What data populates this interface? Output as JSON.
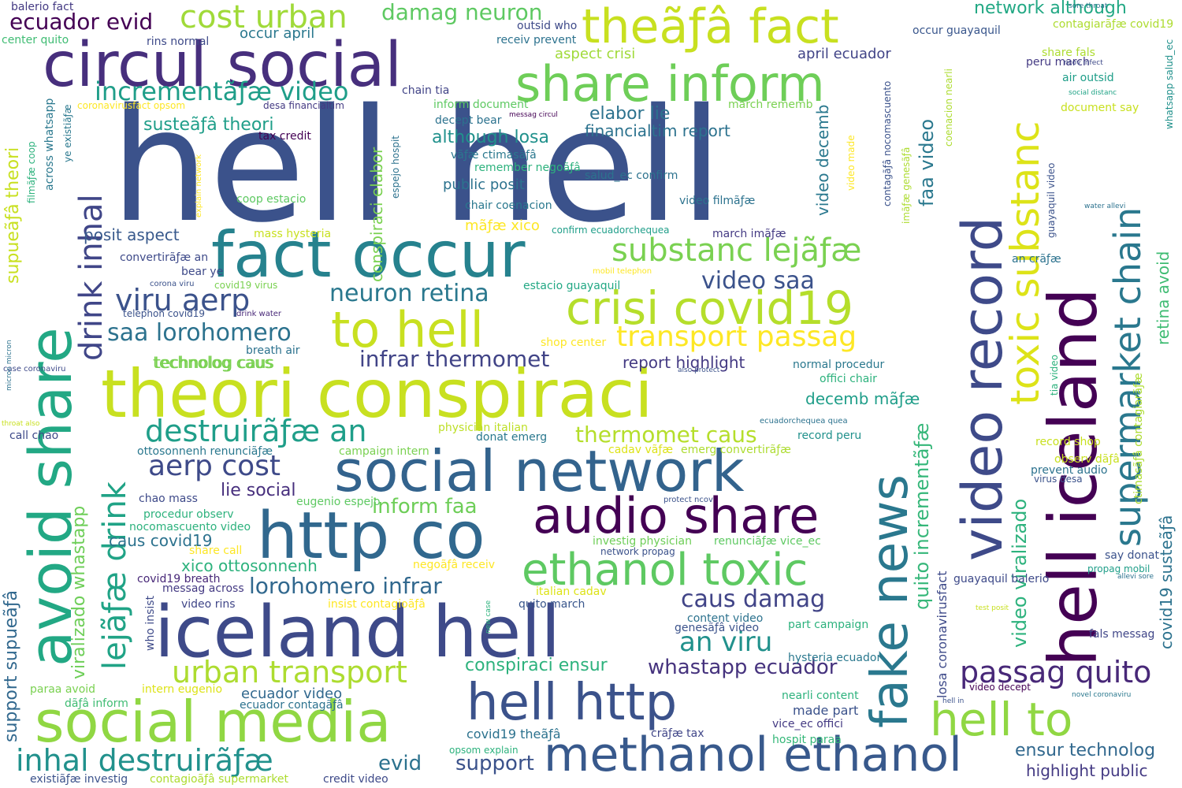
{
  "words": [
    {
      "text": "hell hell",
      "color": "#3b528b"
    },
    {
      "text": "theori conspiraci",
      "color": "#c8e020"
    },
    {
      "text": "iceland hell",
      "color": "#3e4a89"
    },
    {
      "text": "circul social",
      "color": "#472f7d"
    },
    {
      "text": "social network",
      "color": "#33638d"
    },
    {
      "text": "fact occur",
      "color": "#26828e"
    },
    {
      "text": "http co",
      "color": "#31688e"
    },
    {
      "text": "social media",
      "color": "#90d743"
    },
    {
      "text": "methanol ethanol",
      "color": "#38598c"
    },
    {
      "text": "audio share",
      "color": "#440154"
    },
    {
      "text": "theãƒâ fact",
      "color": "#c8e020"
    },
    {
      "text": "share inform",
      "color": "#6ece58"
    },
    {
      "text": "ethanol toxic",
      "color": "#5ec962"
    },
    {
      "text": "crisi covid19",
      "color": "#b5de2b"
    },
    {
      "text": "to hell",
      "color": "#c8e020"
    },
    {
      "text": "hell http",
      "color": "#3b528b"
    },
    {
      "text": "hell to",
      "color": "#90d743"
    },
    {
      "text": "avoid share",
      "color": "#22a884"
    },
    {
      "text": "video record",
      "color": "#3e4a89"
    },
    {
      "text": "hell iceland",
      "color": "#440154"
    },
    {
      "text": "fake news",
      "color": "#2a788e"
    },
    {
      "text": "toxic substanc",
      "color": "#dde318"
    },
    {
      "text": "supermarket chain",
      "color": "#2a788e"
    },
    {
      "text": "substanc lejãƒæ",
      "color": "#7ad151"
    },
    {
      "text": "cost urban",
      "color": "#a0da39"
    },
    {
      "text": "damag neuron",
      "color": "#5ec962"
    },
    {
      "text": "incrementãƒæ video",
      "color": "#1f9e89"
    },
    {
      "text": "viru aerp",
      "color": "#3b528b"
    },
    {
      "text": "urban transport",
      "color": "#addc30"
    },
    {
      "text": "inhal destruirãƒæ",
      "color": "#21918c"
    },
    {
      "text": "destruirãƒæ an",
      "color": "#1f9e89"
    },
    {
      "text": "aerp cost",
      "color": "#3e4a89"
    },
    {
      "text": "passag quito",
      "color": "#482878"
    },
    {
      "text": "transport passag",
      "color": "#fde725"
    },
    {
      "text": "neuron retina",
      "color": "#2a788e"
    },
    {
      "text": "an viru",
      "color": "#21918c"
    },
    {
      "text": "caus damag",
      "color": "#414487"
    },
    {
      "text": "lejãƒæ drink",
      "color": "#20a386"
    },
    {
      "text": "drink inhal",
      "color": "#404688"
    },
    {
      "text": "ecuador evid",
      "color": "#440154"
    },
    {
      "text": "video saa",
      "color": "#3b528b"
    },
    {
      "text": "saa lorohomero",
      "color": "#2c728e"
    },
    {
      "text": "lorohomero infrar",
      "color": "#31688e"
    },
    {
      "text": "infrar thermomet",
      "color": "#414487"
    },
    {
      "text": "thermomet caus",
      "color": "#b5de2b"
    },
    {
      "text": "inform faa",
      "color": "#6ece58"
    },
    {
      "text": "whastapp ecuador",
      "color": "#46337e"
    },
    {
      "text": "conspiraci ensur",
      "color": "#2db27d"
    },
    {
      "text": "support",
      "color": "#3b528b"
    },
    {
      "text": "evid",
      "color": "#2c728e"
    },
    {
      "text": "ensur technolog",
      "color": "#31688e"
    },
    {
      "text": "highlight public",
      "color": "#443a83"
    },
    {
      "text": "elabor lie",
      "color": "#2c728e"
    },
    {
      "text": "although losa",
      "color": "#21918c"
    },
    {
      "text": "susteãƒâ theori",
      "color": "#1f9e89"
    },
    {
      "text": "financialtim report",
      "color": "#2c728e"
    },
    {
      "text": "aspect crisi",
      "color": "#a0da39"
    },
    {
      "text": "april ecuador",
      "color": "#414487"
    },
    {
      "text": "public posit",
      "color": "#2c728e"
    },
    {
      "text": "technolog caus",
      "color": "#7ad151"
    },
    {
      "text": "report highlight",
      "color": "#443a83"
    },
    {
      "text": "lie social",
      "color": "#472f7d"
    },
    {
      "text": "caus covid19",
      "color": "#2c728e"
    },
    {
      "text": "xico ottosonnenh",
      "color": "#2db27d"
    },
    {
      "text": "posit aspect",
      "color": "#38598c"
    },
    {
      "text": "network although",
      "color": "#22a884"
    },
    {
      "text": "occur april",
      "color": "#2a788e"
    },
    {
      "text": "occur guayaquil",
      "color": "#39568c"
    },
    {
      "text": "peru march",
      "color": "#443a83"
    },
    {
      "text": "share fals",
      "color": "#addc30"
    },
    {
      "text": "faa video",
      "color": "#2a788e"
    },
    {
      "text": "video decemb",
      "color": "#2a788e"
    },
    {
      "text": "decemb mãƒæ",
      "color": "#1f9e89"
    },
    {
      "text": "conspiraci elabor",
      "color": "#7ad151"
    },
    {
      "text": "quito incrementãƒæ",
      "color": "#35b779"
    },
    {
      "text": "virus desa",
      "color": "#3b528b"
    },
    {
      "text": "ecuador video",
      "color": "#31688e"
    },
    {
      "text": "mãƒæ xico",
      "color": "#fde725"
    },
    {
      "text": "retina avoid",
      "color": "#3fbc73"
    },
    {
      "text": "supueãƒâ theori",
      "color": "#c8e020"
    },
    {
      "text": "support supueãƒâ",
      "color": "#31688e"
    },
    {
      "text": "viralizado whastapp",
      "color": "#6ece58"
    },
    {
      "text": "video viralizado",
      "color": "#2db27d"
    },
    {
      "text": "losa coronavirusfact",
      "color": "#3e4a89"
    },
    {
      "text": "covid19 susteãƒâ",
      "color": "#2c728e"
    },
    {
      "text": "record shop",
      "color": "#c8e020"
    },
    {
      "text": "prevent audio",
      "color": "#2c728e"
    },
    {
      "text": "fals messag",
      "color": "#404688"
    },
    {
      "text": "say donat",
      "color": "#3b528b"
    },
    {
      "text": "guayaquil balerio",
      "color": "#3e4a89"
    },
    {
      "text": "normal procedur",
      "color": "#2a788e"
    },
    {
      "text": "offici chair",
      "color": "#2db27d"
    },
    {
      "text": "record peru",
      "color": "#21918c"
    },
    {
      "text": "hysteria ecuador",
      "color": "#2a788e"
    },
    {
      "text": "nearli content",
      "color": "#2db27d"
    },
    {
      "text": "made part",
      "color": "#3b528b"
    },
    {
      "text": "vice_ec offici",
      "color": "#443a83"
    },
    {
      "text": "hospit paraa",
      "color": "#35b779"
    },
    {
      "text": "content video",
      "color": "#2c728e"
    },
    {
      "text": "genesãƒâ video",
      "color": "#3b528b"
    },
    {
      "text": "part campaign",
      "color": "#2db27d"
    },
    {
      "text": "crãƒæ tax",
      "color": "#404688"
    },
    {
      "text": "covid19 theãƒâ",
      "color": "#2c728e"
    },
    {
      "text": "italian cadav",
      "color": "#dde318"
    },
    {
      "text": "quito march",
      "color": "#39568c"
    },
    {
      "text": "investig physician",
      "color": "#6ece58"
    },
    {
      "text": "renunciãƒæ vice_ec",
      "color": "#5ec962"
    },
    {
      "text": "network propag",
      "color": "#3b528b"
    },
    {
      "text": "negoãƒâ receiv",
      "color": "#fde725"
    },
    {
      "text": "physician italian",
      "color": "#bddf26"
    },
    {
      "text": "donat emerg",
      "color": "#2a788e"
    },
    {
      "text": "cadav vãƒæ",
      "color": "#dde318"
    },
    {
      "text": "emerg convertirãƒæ",
      "color": "#addc30"
    },
    {
      "text": "campaign intern",
      "color": "#7ad151"
    },
    {
      "text": "eugenio espejo",
      "color": "#5ec962"
    },
    {
      "text": "protect ncov",
      "color": "#3b528b"
    },
    {
      "text": "ottosonnenh renunciãƒæ",
      "color": "#2a788e"
    },
    {
      "text": "chao mass",
      "color": "#3e4a89"
    },
    {
      "text": "procedur observ",
      "color": "#2db27d"
    },
    {
      "text": "nocomascuento video",
      "color": "#2db27d"
    },
    {
      "text": "share call",
      "color": "#fde725"
    },
    {
      "text": "covid19 breath",
      "color": "#482878"
    },
    {
      "text": "messag across",
      "color": "#443a83"
    },
    {
      "text": "video rins",
      "color": "#404688"
    },
    {
      "text": "insist contagioãƒâ",
      "color": "#fde725"
    },
    {
      "text": "paraa avoid",
      "color": "#7ad151"
    },
    {
      "text": "intern eugenio",
      "color": "#dde318"
    },
    {
      "text": "dãƒâ inform",
      "color": "#3fbc73"
    },
    {
      "text": "ecuador contagãƒâ",
      "color": "#2c728e"
    },
    {
      "text": "existiãƒæ investig",
      "color": "#3b528b"
    },
    {
      "text": "contagioãƒâ supermarket",
      "color": "#addc30"
    },
    {
      "text": "credit video",
      "color": "#3e4a89"
    },
    {
      "text": "opsom explain",
      "color": "#2db27d"
    },
    {
      "text": "who insist",
      "color": "#3e4a89"
    },
    {
      "text": "call chao",
      "color": "#3e4a89"
    },
    {
      "text": "case coronaviru",
      "color": "#3e4a89"
    },
    {
      "text": "technolog caus",
      "color": "#7ad151"
    },
    {
      "text": "breath air",
      "color": "#2c728e"
    },
    {
      "text": "telephon covid19",
      "color": "#3b528b"
    },
    {
      "text": "drink water",
      "color": "#482878"
    },
    {
      "text": "corona viru",
      "color": "#3b528b"
    },
    {
      "text": "covid19 virus",
      "color": "#7ad151"
    },
    {
      "text": "bear ye",
      "color": "#3e4a89"
    },
    {
      "text": "convertirãƒæ an",
      "color": "#3e4a89"
    },
    {
      "text": "mass hysteria",
      "color": "#c8e020"
    },
    {
      "text": "coop estacio",
      "color": "#5ec962"
    },
    {
      "text": "estacio guayaquil",
      "color": "#22a884"
    },
    {
      "text": "mobil telephon",
      "color": "#fde725"
    },
    {
      "text": "shop center",
      "color": "#fde725"
    },
    {
      "text": "also protect",
      "color": "#3b528b"
    },
    {
      "text": "confirm ecuadorchequea",
      "color": "#1f9e89"
    },
    {
      "text": "march imãƒæ",
      "color": "#443a83"
    },
    {
      "text": "video filmãƒæ",
      "color": "#2c728e"
    },
    {
      "text": "chair coenacion",
      "color": "#2a788e"
    },
    {
      "text": "remember negoãƒâ",
      "color": "#2db27d"
    },
    {
      "text": "vãƒæ ctimasãƒâ",
      "color": "#2a788e"
    },
    {
      "text": "decept bear",
      "color": "#2c728e"
    },
    {
      "text": "messag circul",
      "color": "#440154"
    },
    {
      "text": "inform document",
      "color": "#5ec962"
    },
    {
      "text": "chain tia",
      "color": "#414487"
    },
    {
      "text": "march rememb",
      "color": "#7ad151"
    },
    {
      "text": "desa financialtim",
      "color": "#443a83"
    },
    {
      "text": "tax credit",
      "color": "#440154"
    },
    {
      "text": "coronavirusfact opsom",
      "color": "#fde725"
    },
    {
      "text": "rins normal",
      "color": "#3e4a89"
    },
    {
      "text": "balerio fact",
      "color": "#443a83"
    },
    {
      "text": "center quito",
      "color": "#3fbc73"
    },
    {
      "text": "outsid who",
      "color": "#3e4a89"
    },
    {
      "text": "receiv prevent",
      "color": "#2c728e"
    },
    {
      "text": "salud_ec confirm",
      "color": "#2c728e"
    },
    {
      "text": "sore throat",
      "color": "#2c728e"
    },
    {
      "text": "contagiarãƒæ covid19",
      "color": "#addc30"
    },
    {
      "text": "ncov infect",
      "color": "#3e4a89"
    },
    {
      "text": "air outsid",
      "color": "#1f9e89"
    },
    {
      "text": "social distanc",
      "color": "#20a386"
    },
    {
      "text": "document say",
      "color": "#c8e020"
    },
    {
      "text": "whatsapp salud_ec",
      "color": "#21918c"
    },
    {
      "text": "water allevi",
      "color": "#2c728e"
    },
    {
      "text": "an crãƒæ",
      "color": "#2c728e"
    },
    {
      "text": "tia video",
      "color": "#2db27d"
    },
    {
      "text": "ctimasãƒâ contagiarãƒæ",
      "color": "#addc30"
    },
    {
      "text": "observ dãƒâ",
      "color": "#c8e020"
    },
    {
      "text": "propag mobil",
      "color": "#1f9e89"
    },
    {
      "text": "allevi sore",
      "color": "#2c728e"
    },
    {
      "text": "test posit",
      "color": "#c8e020"
    },
    {
      "text": "novel coronaviru",
      "color": "#2a788e"
    },
    {
      "text": "video decept",
      "color": "#440154"
    },
    {
      "text": "hell in",
      "color": "#3b528b"
    },
    {
      "text": "guayaquil video",
      "color": "#3b528b"
    },
    {
      "text": "coenacion nearli",
      "color": "#addc30"
    },
    {
      "text": "imãƒæ genesãƒâ",
      "color": "#addc30"
    },
    {
      "text": "contagãƒâ nocomascuento",
      "color": "#3b528b"
    },
    {
      "text": "video made",
      "color": "#fde725"
    },
    {
      "text": "espejo hospit",
      "color": "#2c728e"
    },
    {
      "text": "explain network",
      "color": "#fde725"
    },
    {
      "text": "filmãƒæ coop",
      "color": "#2db27d"
    },
    {
      "text": "across whatsapp",
      "color": "#2a788e"
    },
    {
      "text": "ye existiãƒæ",
      "color": "#2a788e"
    },
    {
      "text": "new case",
      "color": "#2db27d"
    },
    {
      "text": "micron micron",
      "color": "#2c728e"
    },
    {
      "text": "throat also",
      "color": "#c8e020"
    },
    {
      "text": "ecuadorchequea quea",
      "color": "#2c728e"
    }
  ]
}
